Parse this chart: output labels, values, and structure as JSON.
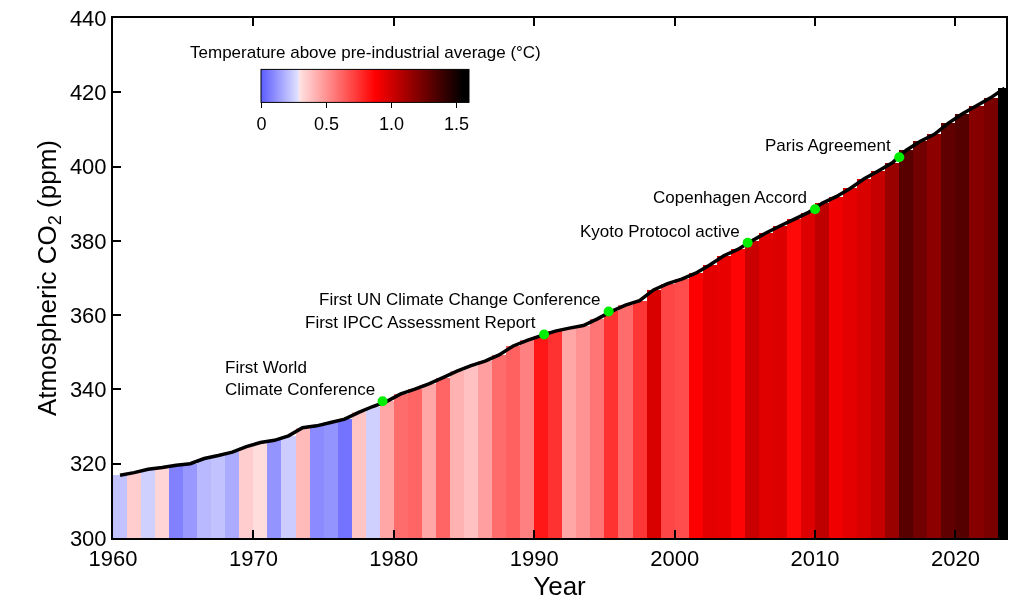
{
  "chart_data": {
    "type": "bar",
    "xlabel": "Year",
    "ylabel": "Atmospheric CO$_{2}$ (ppm)",
    "clabel": "Temperature above pre-industrial average (°C)",
    "xlim": [
      1960,
      2023.6
    ],
    "xticks": [
      1960,
      1970,
      1980,
      1990,
      2000,
      2010,
      2020
    ],
    "ylim": [
      300,
      440
    ],
    "yticks": [
      300,
      320,
      340,
      360,
      380,
      400,
      420,
      440
    ],
    "series": [
      {
        "x": [
          1960.5,
          1961.5,
          1962.5,
          1963.5,
          1964.5,
          1965.5,
          1966.5,
          1967.5,
          1968.5,
          1969.5,
          1970.5,
          1971.5,
          1972.5,
          1973.5,
          1974.5,
          1975.5,
          1976.5,
          1977.5,
          1978.5,
          1979.5,
          1980.5,
          1981.5,
          1982.5,
          1983.5,
          1984.5,
          1985.5,
          1986.5,
          1987.5,
          1988.5,
          1989.5,
          1990.5,
          1991.5,
          1992.5,
          1993.5,
          1994.5,
          1995.5,
          1996.5,
          1997.5,
          1998.5,
          1999.5,
          2000.5,
          2001.5,
          2002.5,
          2003.5,
          2004.5,
          2005.5,
          2006.5,
          2007.5,
          2008.5,
          2009.5,
          2010.5,
          2011.5,
          2012.5,
          2013.5,
          2014.5,
          2015.5,
          2016.5,
          2017.5,
          2018.5,
          2019.5,
          2020.5,
          2021.5,
          2022.5,
          2023.5
        ],
        "values": [
          316.9,
          317.6,
          318.5,
          319.0,
          319.6,
          320.0,
          321.4,
          322.2,
          323.1,
          324.6,
          325.7,
          326.3,
          327.5,
          329.7,
          330.2,
          331.1,
          332.0,
          333.8,
          335.4,
          336.8,
          338.8,
          340.1,
          341.5,
          343.2,
          344.9,
          346.4,
          347.6,
          349.3,
          351.7,
          353.2,
          354.5,
          355.7,
          356.5,
          357.2,
          359.0,
          361.0,
          362.7,
          363.9,
          366.8,
          368.5,
          369.7,
          371.3,
          373.5,
          376.0,
          377.7,
          380.0,
          382.1,
          384.0,
          385.8,
          387.6,
          390.1,
          391.9,
          394.1,
          396.7,
          398.8,
          401.0,
          404.4,
          406.8,
          408.7,
          411.7,
          414.2,
          416.4,
          418.5,
          421.1
        ],
        "colors": [
          "#c2c2ff",
          "#ffcdcd",
          "#d0d0ff",
          "#ffd5d5",
          "#8181ff",
          "#9898ff",
          "#b9b9ff",
          "#c2c2ff",
          "#ababff",
          "#ffcdcd",
          "#ffdddd",
          "#9494ff",
          "#ccccff",
          "#ffbaba",
          "#8b8bff",
          "#9494ff",
          "#7373ff",
          "#ffc5c5",
          "#d0d0ff",
          "#ffa6a6",
          "#ff6c6c",
          "#ff6565",
          "#ffa6a6",
          "#ff6565",
          "#ffb2b2",
          "#ffc1c1",
          "#ff9f9f",
          "#ff6c6c",
          "#ff6161",
          "#ff8080",
          "#ff1717",
          "#ff3232",
          "#ffa6a6",
          "#ff9393",
          "#ff7474",
          "#ff3232",
          "#ff6c6c",
          "#ff3636",
          "#d90000",
          "#ff4646",
          "#ff4d4d",
          "#ff0000",
          "#e40000",
          "#e80000",
          "#ff0404",
          "#ca0000",
          "#e10000",
          "#dd0000",
          "#ff0808",
          "#dd0000",
          "#be0000",
          "#f00000",
          "#e40000",
          "#d90000",
          "#c60000",
          "#990000",
          "#580000",
          "#730000",
          "#8d0000",
          "#600000",
          "#540000",
          "#860000",
          "#7a0000",
          "#010000"
        ]
      },
      {
        "type": "line",
        "color": "#000000",
        "marker": "none",
        "line_style": "solid",
        "x": [
          1960.5,
          1961.5,
          1962.5,
          1963.5,
          1964.5,
          1965.5,
          1966.5,
          1967.5,
          1968.5,
          1969.5,
          1970.5,
          1971.5,
          1972.5,
          1973.5,
          1974.5,
          1975.5,
          1976.5,
          1977.5,
          1978.5,
          1979.5,
          1980.5,
          1981.5,
          1982.5,
          1983.5,
          1984.5,
          1985.5,
          1986.5,
          1987.5,
          1988.5,
          1989.5,
          1990.5,
          1991.5,
          1992.5,
          1993.5,
          1994.5,
          1995.5,
          1996.5,
          1997.5,
          1998.5,
          1999.5,
          2000.5,
          2001.5,
          2002.5,
          2003.5,
          2004.5,
          2005.5,
          2006.5,
          2007.5,
          2008.5,
          2009.5,
          2010.5,
          2011.5,
          2012.5,
          2013.5,
          2014.5,
          2015.5,
          2016.5,
          2017.5,
          2018.5,
          2019.5,
          2020.5,
          2021.5,
          2022.5,
          2023.5
        ],
        "values": [
          316.9,
          317.6,
          318.5,
          319.0,
          319.6,
          320.0,
          321.4,
          322.2,
          323.1,
          324.6,
          325.7,
          326.3,
          327.5,
          329.7,
          330.2,
          331.1,
          332.0,
          333.8,
          335.4,
          336.8,
          338.8,
          340.1,
          341.5,
          343.2,
          344.9,
          346.4,
          347.6,
          349.3,
          351.7,
          353.2,
          354.5,
          355.7,
          356.5,
          357.2,
          359.0,
          361.0,
          362.7,
          363.9,
          366.8,
          368.5,
          369.7,
          371.3,
          373.5,
          376.0,
          377.7,
          380.0,
          382.1,
          384.0,
          385.8,
          387.6,
          390.1,
          391.9,
          394.1,
          396.7,
          398.8,
          401.0,
          404.4,
          406.8,
          408.7,
          411.7,
          414.2,
          416.4,
          418.5,
          421.1
        ]
      },
      {
        "type": "scatter",
        "color": "#00ee00",
        "marker": "circle",
        "x": [
          1979.2,
          1990.7,
          1995.3,
          2005.2,
          2010.0,
          2016.0
        ],
        "values": [
          336.8,
          354.8,
          361.0,
          379.5,
          388.5,
          402.5
        ]
      }
    ],
    "annotations": [
      {
        "text": "First World\nClimate Conference",
        "x": 1979.2,
        "y": 336.8
      },
      {
        "text": "First IPCC Assessment Report",
        "x": 1990.7,
        "y": 354.8
      },
      {
        "text": "First UN Climate Change Conference",
        "x": 1995.3,
        "y": 361.0
      },
      {
        "text": "Kyoto Protocol active",
        "x": 2005.2,
        "y": 379.5
      },
      {
        "text": "Copenhagen Accord",
        "x": 2010.0,
        "y": 388.5
      },
      {
        "text": "Paris Agreement",
        "x": 2016.0,
        "y": 402.5
      },
      "0",
      "0.5",
      "1.0",
      "1.5"
    ]
  }
}
